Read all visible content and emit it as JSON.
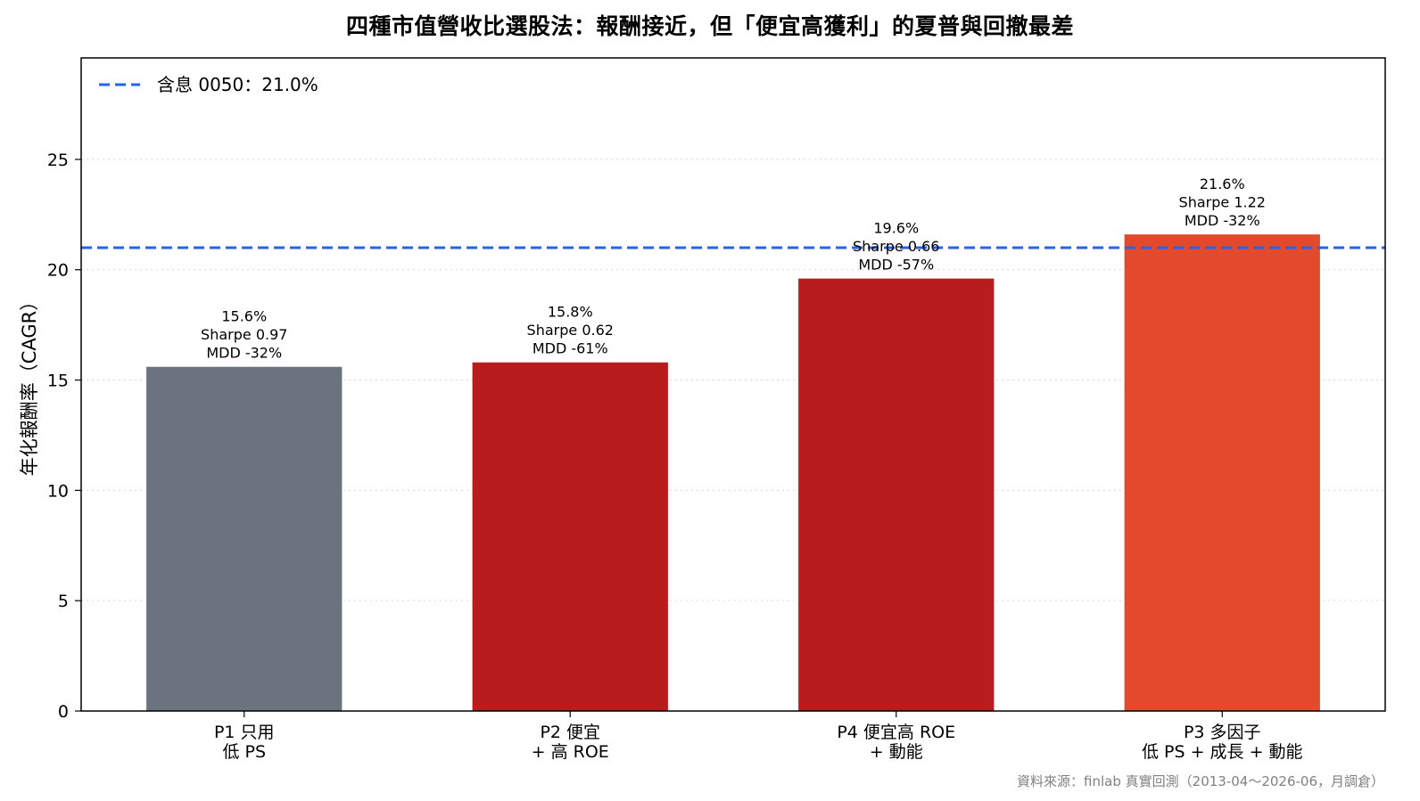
{
  "chart_data": {
    "type": "bar",
    "title": "四種市值營收比選股法：報酬接近，但「便宜高獲利」的夏普與回撤最差",
    "ylabel": "年化報酬率（CAGR）",
    "xlabel": "",
    "ylim": [
      0,
      29.6
    ],
    "yticks": [
      0,
      5,
      10,
      15,
      20,
      25
    ],
    "grid": "horizontal dotted",
    "legend_position": "top-left",
    "categories": [
      [
        "P1 只用",
        "低 PS"
      ],
      [
        "P2 便宜",
        "+ 高 ROE"
      ],
      [
        "P4 便宜高 ROE",
        "+ 動能"
      ],
      [
        "P3 多因子",
        "低 PS + 成長 + 動能"
      ]
    ],
    "values": [
      15.6,
      15.8,
      19.6,
      21.6
    ],
    "colors": [
      "#6b7280",
      "#b91c1c",
      "#b91c1c",
      "#e34a2b"
    ],
    "annotations": [
      [
        "15.6%",
        "Sharpe 0.97",
        "MDD -32%"
      ],
      [
        "15.8%",
        "Sharpe 0.62",
        "MDD -61%"
      ],
      [
        "19.6%",
        "Sharpe 0.66",
        "MDD -57%"
      ],
      [
        "21.6%",
        "Sharpe 1.22",
        "MDD -32%"
      ]
    ],
    "reference_line": {
      "value": 21.0,
      "label": "含息 0050：21.0%",
      "color": "#2563eb",
      "style": "dashed"
    },
    "source_note": "資料來源：finlab 真實回測（2013-04～2026-06，月調倉）"
  }
}
